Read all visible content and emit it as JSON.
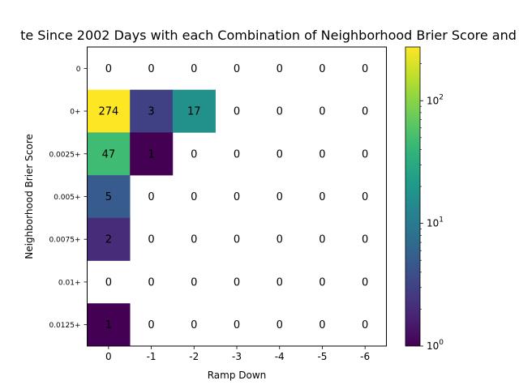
{
  "chart_data": {
    "type": "heatmap",
    "title": "te Since 2002 Days with each Combination of Neighborhood Brier Score and",
    "xlabel": "Ramp Down",
    "ylabel": "Neighborhood Brier Score",
    "x_categories": [
      "0",
      "-1",
      "-2",
      "-3",
      "-4",
      "-5",
      "-6"
    ],
    "y_categories": [
      "0",
      "0+",
      "0.0025+",
      "0.005+",
      "0.0075+",
      "0.01+",
      "0.0125+"
    ],
    "values": [
      [
        0,
        0,
        0,
        0,
        0,
        0,
        0
      ],
      [
        274,
        3,
        17,
        0,
        0,
        0,
        0
      ],
      [
        47,
        1,
        0,
        0,
        0,
        0,
        0
      ],
      [
        5,
        0,
        0,
        0,
        0,
        0,
        0
      ],
      [
        2,
        0,
        0,
        0,
        0,
        0,
        0
      ],
      [
        0,
        0,
        0,
        0,
        0,
        0,
        0
      ],
      [
        1,
        0,
        0,
        0,
        0,
        0,
        0
      ]
    ],
    "colorbar": {
      "scale": "log",
      "range": [
        1,
        274
      ],
      "colormap": "viridis",
      "ticks": [
        {
          "value": 1,
          "base": "10",
          "exp": "0"
        },
        {
          "value": 10,
          "base": "10",
          "exp": "1"
        },
        {
          "value": 100,
          "base": "10",
          "exp": "2"
        }
      ]
    },
    "grid": false,
    "zero_cells": "blank"
  }
}
